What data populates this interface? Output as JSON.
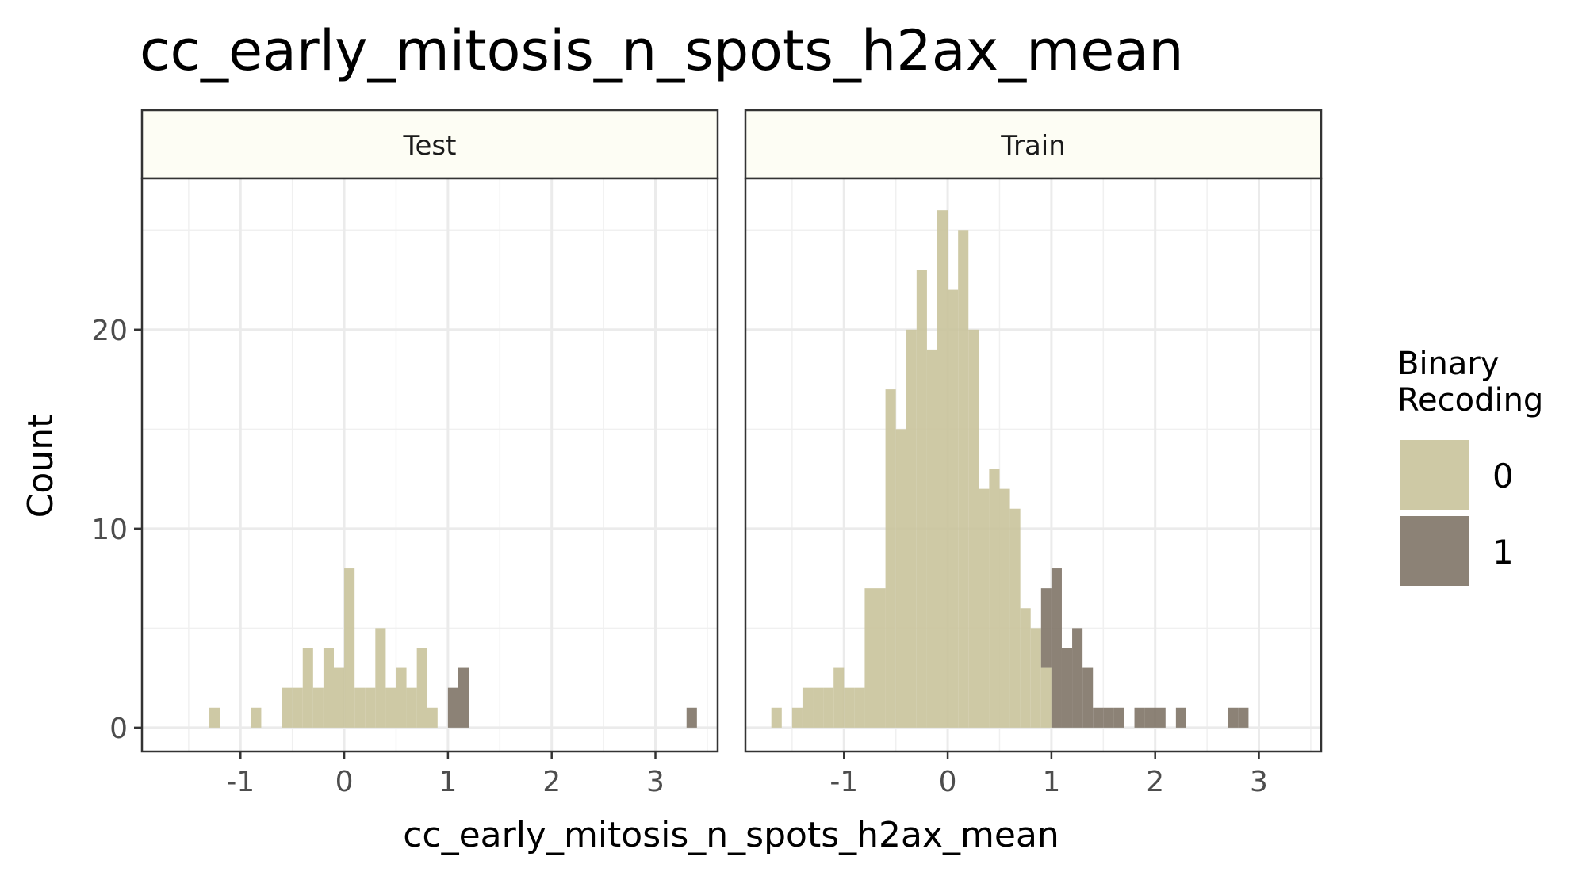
{
  "chart_data": {
    "type": "bar",
    "title": "cc_early_mitosis_n_spots_h2ax_mean",
    "xlabel": "cc_early_mitosis_n_spots_h2ax_mean",
    "ylabel": "Count",
    "x_ticks": [
      "-1",
      "0",
      "1",
      "2",
      "3"
    ],
    "y_ticks": [
      "0",
      "10",
      "20"
    ],
    "xlim": [
      -1.95,
      3.6
    ],
    "ylim": [
      -1.2,
      27.6
    ],
    "grid": true,
    "bin_width": 0.1,
    "legend": {
      "title_lines": [
        "Binary",
        "Recoding"
      ],
      "position": "right",
      "entries": [
        {
          "label": "0",
          "color": "#c9c39b"
        },
        {
          "label": "1",
          "color": "#7f7467"
        }
      ]
    },
    "panels": [
      {
        "name": "Test",
        "series": [
          {
            "name": "0",
            "bins": [
              {
                "x": -1.25,
                "count": 1
              },
              {
                "x": -0.85,
                "count": 1
              },
              {
                "x": -0.55,
                "count": 2
              },
              {
                "x": -0.45,
                "count": 2
              },
              {
                "x": -0.35,
                "count": 4
              },
              {
                "x": -0.25,
                "count": 2
              },
              {
                "x": -0.15,
                "count": 4
              },
              {
                "x": -0.05,
                "count": 3
              },
              {
                "x": 0.05,
                "count": 8
              },
              {
                "x": 0.15,
                "count": 2
              },
              {
                "x": 0.25,
                "count": 2
              },
              {
                "x": 0.35,
                "count": 5
              },
              {
                "x": 0.45,
                "count": 2
              },
              {
                "x": 0.55,
                "count": 3
              },
              {
                "x": 0.65,
                "count": 2
              },
              {
                "x": 0.75,
                "count": 4
              },
              {
                "x": 0.85,
                "count": 1
              }
            ]
          },
          {
            "name": "1",
            "bins": [
              {
                "x": 1.05,
                "count": 2
              },
              {
                "x": 1.15,
                "count": 3
              },
              {
                "x": 3.35,
                "count": 1
              }
            ]
          }
        ]
      },
      {
        "name": "Train",
        "series": [
          {
            "name": "0",
            "bins": [
              {
                "x": -1.65,
                "count": 1
              },
              {
                "x": -1.45,
                "count": 1
              },
              {
                "x": -1.35,
                "count": 2
              },
              {
                "x": -1.25,
                "count": 2
              },
              {
                "x": -1.15,
                "count": 2
              },
              {
                "x": -1.05,
                "count": 3
              },
              {
                "x": -0.95,
                "count": 2
              },
              {
                "x": -0.85,
                "count": 2
              },
              {
                "x": -0.75,
                "count": 7
              },
              {
                "x": -0.65,
                "count": 7
              },
              {
                "x": -0.55,
                "count": 17
              },
              {
                "x": -0.45,
                "count": 15
              },
              {
                "x": -0.35,
                "count": 20
              },
              {
                "x": -0.25,
                "count": 23
              },
              {
                "x": -0.15,
                "count": 19
              },
              {
                "x": -0.05,
                "count": 26
              },
              {
                "x": 0.05,
                "count": 22
              },
              {
                "x": 0.15,
                "count": 25
              },
              {
                "x": 0.25,
                "count": 20
              },
              {
                "x": 0.35,
                "count": 12
              },
              {
                "x": 0.45,
                "count": 13
              },
              {
                "x": 0.55,
                "count": 12
              },
              {
                "x": 0.65,
                "count": 11
              },
              {
                "x": 0.75,
                "count": 6
              },
              {
                "x": 0.85,
                "count": 5
              },
              {
                "x": 0.95,
                "count": 3
              }
            ]
          },
          {
            "name": "1",
            "bins": [
              {
                "x": 0.95,
                "count": 4
              },
              {
                "x": 1.05,
                "count": 8
              },
              {
                "x": 1.15,
                "count": 4
              },
              {
                "x": 1.25,
                "count": 5
              },
              {
                "x": 1.35,
                "count": 3
              },
              {
                "x": 1.45,
                "count": 1
              },
              {
                "x": 1.55,
                "count": 1
              },
              {
                "x": 1.65,
                "count": 1
              },
              {
                "x": 1.85,
                "count": 1
              },
              {
                "x": 1.95,
                "count": 1
              },
              {
                "x": 2.05,
                "count": 1
              },
              {
                "x": 2.25,
                "count": 1
              },
              {
                "x": 2.75,
                "count": 1
              },
              {
                "x": 2.85,
                "count": 1
              }
            ]
          }
        ]
      }
    ]
  }
}
